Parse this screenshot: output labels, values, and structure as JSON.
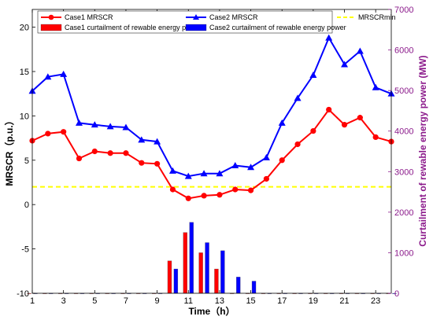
{
  "chart_data": {
    "type": "line",
    "xlabel": "Time（h）",
    "ylabel": "MRSCR（p.u.）",
    "ylabel_right": "Curtailment of rewable energy power (MW)",
    "x": [
      1,
      2,
      3,
      4,
      5,
      6,
      7,
      8,
      9,
      10,
      11,
      12,
      13,
      14,
      15,
      16,
      17,
      18,
      19,
      20,
      21,
      22,
      23,
      24
    ],
    "xticks": [
      1,
      3,
      5,
      7,
      9,
      11,
      13,
      15,
      17,
      19,
      21,
      23
    ],
    "xlim": [
      1,
      24
    ],
    "ylim": [
      -10,
      22
    ],
    "yticks": [
      -10,
      -5,
      0,
      5,
      10,
      15,
      20
    ],
    "ylim_right": [
      0,
      7000
    ],
    "yticks_right": [
      0,
      1000,
      2000,
      3000,
      4000,
      5000,
      6000,
      7000
    ],
    "grid": false,
    "legend_position": "top",
    "series": [
      {
        "name": "Case1 MRSCR",
        "kind": "line",
        "axis": "left",
        "color": "#ff0000",
        "marker": "circle",
        "values": [
          7.2,
          8.0,
          8.2,
          5.2,
          6.0,
          5.8,
          5.8,
          4.7,
          4.6,
          1.7,
          0.7,
          1.0,
          1.1,
          1.7,
          1.6,
          2.9,
          5.0,
          6.8,
          8.3,
          10.7,
          9.0,
          9.8,
          7.6,
          7.1
        ]
      },
      {
        "name": "Case2 MRSCR",
        "kind": "line",
        "axis": "left",
        "color": "#0000ff",
        "marker": "triangle",
        "values": [
          12.8,
          14.4,
          14.7,
          9.2,
          9.0,
          8.8,
          8.7,
          7.3,
          7.1,
          3.8,
          3.2,
          3.5,
          3.5,
          4.4,
          4.2,
          5.3,
          9.2,
          12.0,
          14.6,
          18.8,
          15.8,
          17.3,
          13.2,
          12.5
        ]
      },
      {
        "name": "MRSCRmin",
        "kind": "hline",
        "axis": "left",
        "color": "#ffff00",
        "dashed": true,
        "value": 2
      },
      {
        "name": "Case1 curtailment of rewable energy power",
        "kind": "bar",
        "axis": "right",
        "color": "#ff0000",
        "offset": -0.2,
        "values": [
          0,
          0,
          0,
          0,
          0,
          0,
          0,
          0,
          0,
          800,
          1500,
          1000,
          600,
          0,
          0,
          0,
          0,
          0,
          0,
          0,
          0,
          0,
          0,
          0
        ]
      },
      {
        "name": "Case2 curtailment of rewable energy power",
        "kind": "bar",
        "axis": "right",
        "color": "#0000ff",
        "offset": 0.2,
        "values": [
          0,
          0,
          0,
          0,
          0,
          0,
          0,
          0,
          0,
          600,
          1750,
          1250,
          1050,
          400,
          300,
          0,
          0,
          0,
          0,
          0,
          0,
          0,
          0,
          0
        ]
      }
    ]
  }
}
